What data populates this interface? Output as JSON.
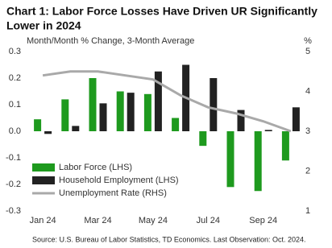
{
  "chart_data": {
    "type": "bar_line",
    "title": "Chart 1: Labor Force Losses Have Driven UR Significantly",
    "title_line2": "Lower in 2024",
    "subtitle": "Month/Month % Change, 3-Month Average",
    "y2_unit": "%",
    "source": "Source: U.S. Bureau of Labor Statistics, TD Economics.  Last Observation: Oct. 2024.",
    "categories": [
      "Jan 24",
      null,
      "Mar 24",
      null,
      "May 24",
      null,
      "Jul 24",
      null,
      "Sep 24",
      null
    ],
    "series": [
      {
        "name": "Labor Force (LHS)",
        "type": "bar",
        "color": "#1e9a1e",
        "values": [
          0.045,
          0.12,
          0.2,
          0.15,
          0.14,
          0.05,
          -0.055,
          -0.21,
          -0.225,
          -0.11
        ]
      },
      {
        "name": "Household Employment (LHS)",
        "type": "bar",
        "color": "#222222",
        "values": [
          -0.01,
          0.02,
          0.105,
          0.145,
          0.225,
          0.25,
          0.2,
          0.08,
          0.005,
          0.09
        ]
      },
      {
        "name": "Unemployment Rate (RHS)",
        "type": "line",
        "axis": "y2",
        "color": "#a9a9a9",
        "values": [
          4.4,
          4.5,
          4.5,
          4.4,
          4.3,
          3.9,
          3.6,
          3.45,
          3.25,
          3.0
        ]
      }
    ],
    "ylim": [
      -0.3,
      0.3
    ],
    "yticks": [
      -0.3,
      -0.2,
      -0.1,
      {
        "value": 0,
        "label": "0.0"
      },
      0.1,
      0.2,
      0.3
    ],
    "y2lim": [
      1,
      5
    ],
    "y2ticks": [
      1,
      2,
      3,
      4,
      5
    ],
    "legend": "lower-left"
  }
}
